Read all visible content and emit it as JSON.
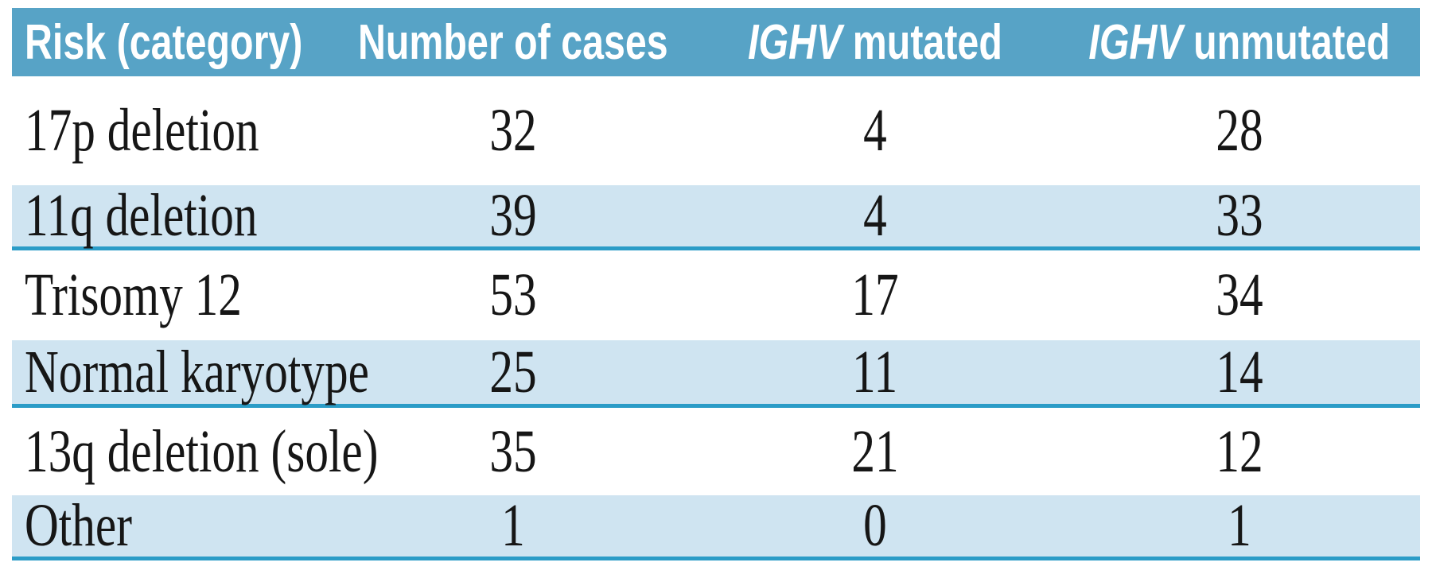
{
  "table": {
    "columns": [
      {
        "label": "Risk (category)"
      },
      {
        "label": "Number of cases"
      },
      {
        "gene": "IGHV",
        "label": " mutated"
      },
      {
        "gene": "IGHV",
        "label": " unmutated"
      }
    ],
    "rows": [
      {
        "category": "17p deletion",
        "cases": "32",
        "mutated": "4",
        "unmutated": "28",
        "shaded": false
      },
      {
        "category": "11q deletion",
        "cases": "39",
        "mutated": "4",
        "unmutated": "33",
        "shaded": true
      },
      {
        "category": "Trisomy 12",
        "cases": "53",
        "mutated": "17",
        "unmutated": "34",
        "shaded": false
      },
      {
        "category": "Normal karyotype",
        "cases": "25",
        "mutated": "11",
        "unmutated": "14",
        "shaded": true
      },
      {
        "category": "13q deletion (sole)",
        "cases": "35",
        "mutated": "21",
        "unmutated": "12",
        "shaded": false
      },
      {
        "category": "Other",
        "cases": "1",
        "mutated": "0",
        "unmutated": "1",
        "shaded": true
      }
    ],
    "colors": {
      "header_bg": "#57A3C6",
      "header_text": "#FFFFFF",
      "shaded_row_bg": "#CFE4F1",
      "rule_line": "#2B9CC7",
      "body_text": "#161616",
      "page_bg": "#FFFFFF"
    }
  }
}
